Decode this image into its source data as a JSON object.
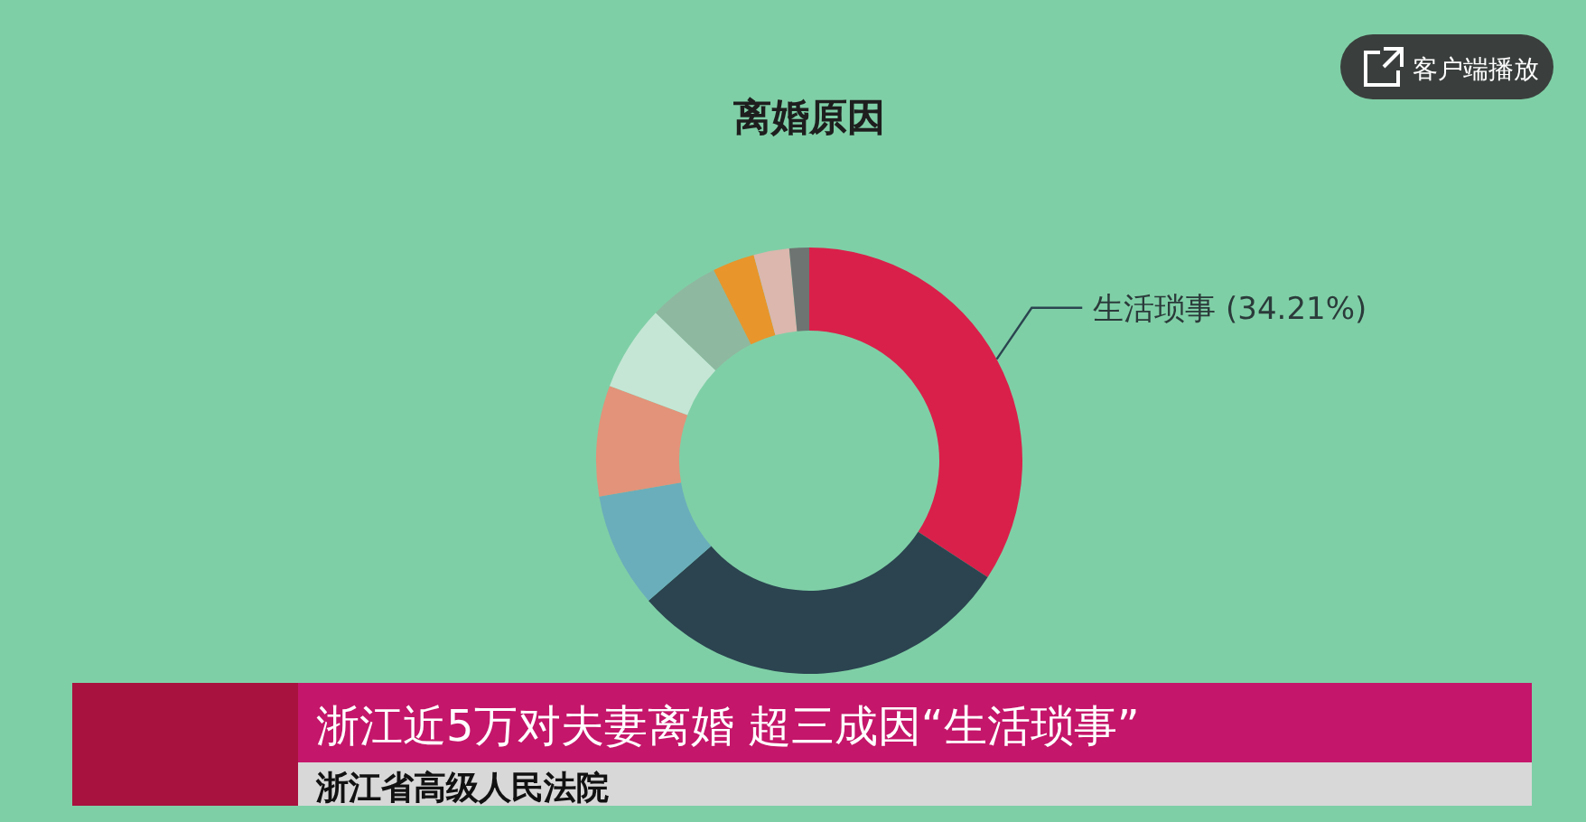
{
  "chart_data": {
    "type": "donut",
    "title": "离婚原因",
    "categories": [
      "生活琐事",
      null,
      null,
      null,
      null,
      null,
      null,
      null,
      null
    ],
    "values": [
      34.21,
      29.39,
      8.7,
      8.4,
      6.5,
      5.4,
      3.2,
      2.7,
      1.5
    ],
    "colors": [
      "#d9204a",
      "#2b4450",
      "#6aaebb",
      "#e2937a",
      "#c5e6d5",
      "#8fb8a0",
      "#e8952b",
      "#dbb7ae",
      "#6e7472"
    ],
    "value_labels": [
      "(34.21%)",
      null,
      null,
      null,
      null,
      null,
      null,
      null,
      null
    ],
    "annotations": [
      "客户端播放",
      "浙江近5万对夫妻离婚 超三成因“生活琐事”",
      "浙江省高级人民法院"
    ]
  }
}
